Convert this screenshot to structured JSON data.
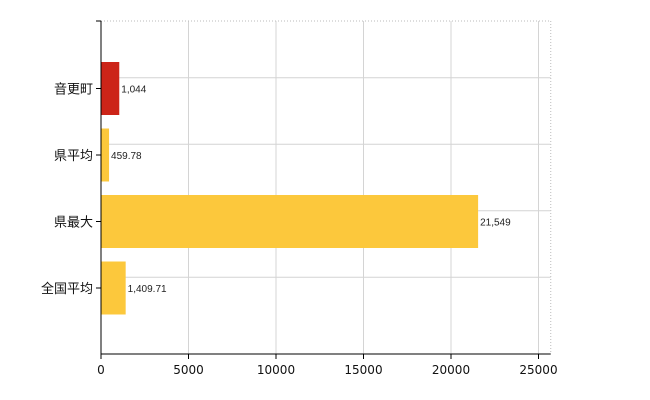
{
  "chart_data": {
    "type": "bar",
    "orientation": "horizontal",
    "categories": [
      "音更町",
      "県平均",
      "県最大",
      "全国平均"
    ],
    "values": [
      1044,
      459.78,
      21549,
      1409.71
    ],
    "value_labels": [
      "1,044",
      "459.78",
      "21,549",
      "1,409.71"
    ],
    "bar_colors": [
      "#cc2418",
      "#fcc83c",
      "#fcc83c",
      "#fcc83c"
    ],
    "x_ticks": [
      0,
      5000,
      10000,
      15000,
      20000,
      25000
    ],
    "x_tick_labels": [
      "0",
      "5000",
      "10000",
      "15000",
      "20000",
      "25000"
    ],
    "xlim": [
      0,
      25700
    ],
    "title": "",
    "xlabel": "",
    "ylabel": "",
    "grid": true,
    "legend": "none"
  }
}
